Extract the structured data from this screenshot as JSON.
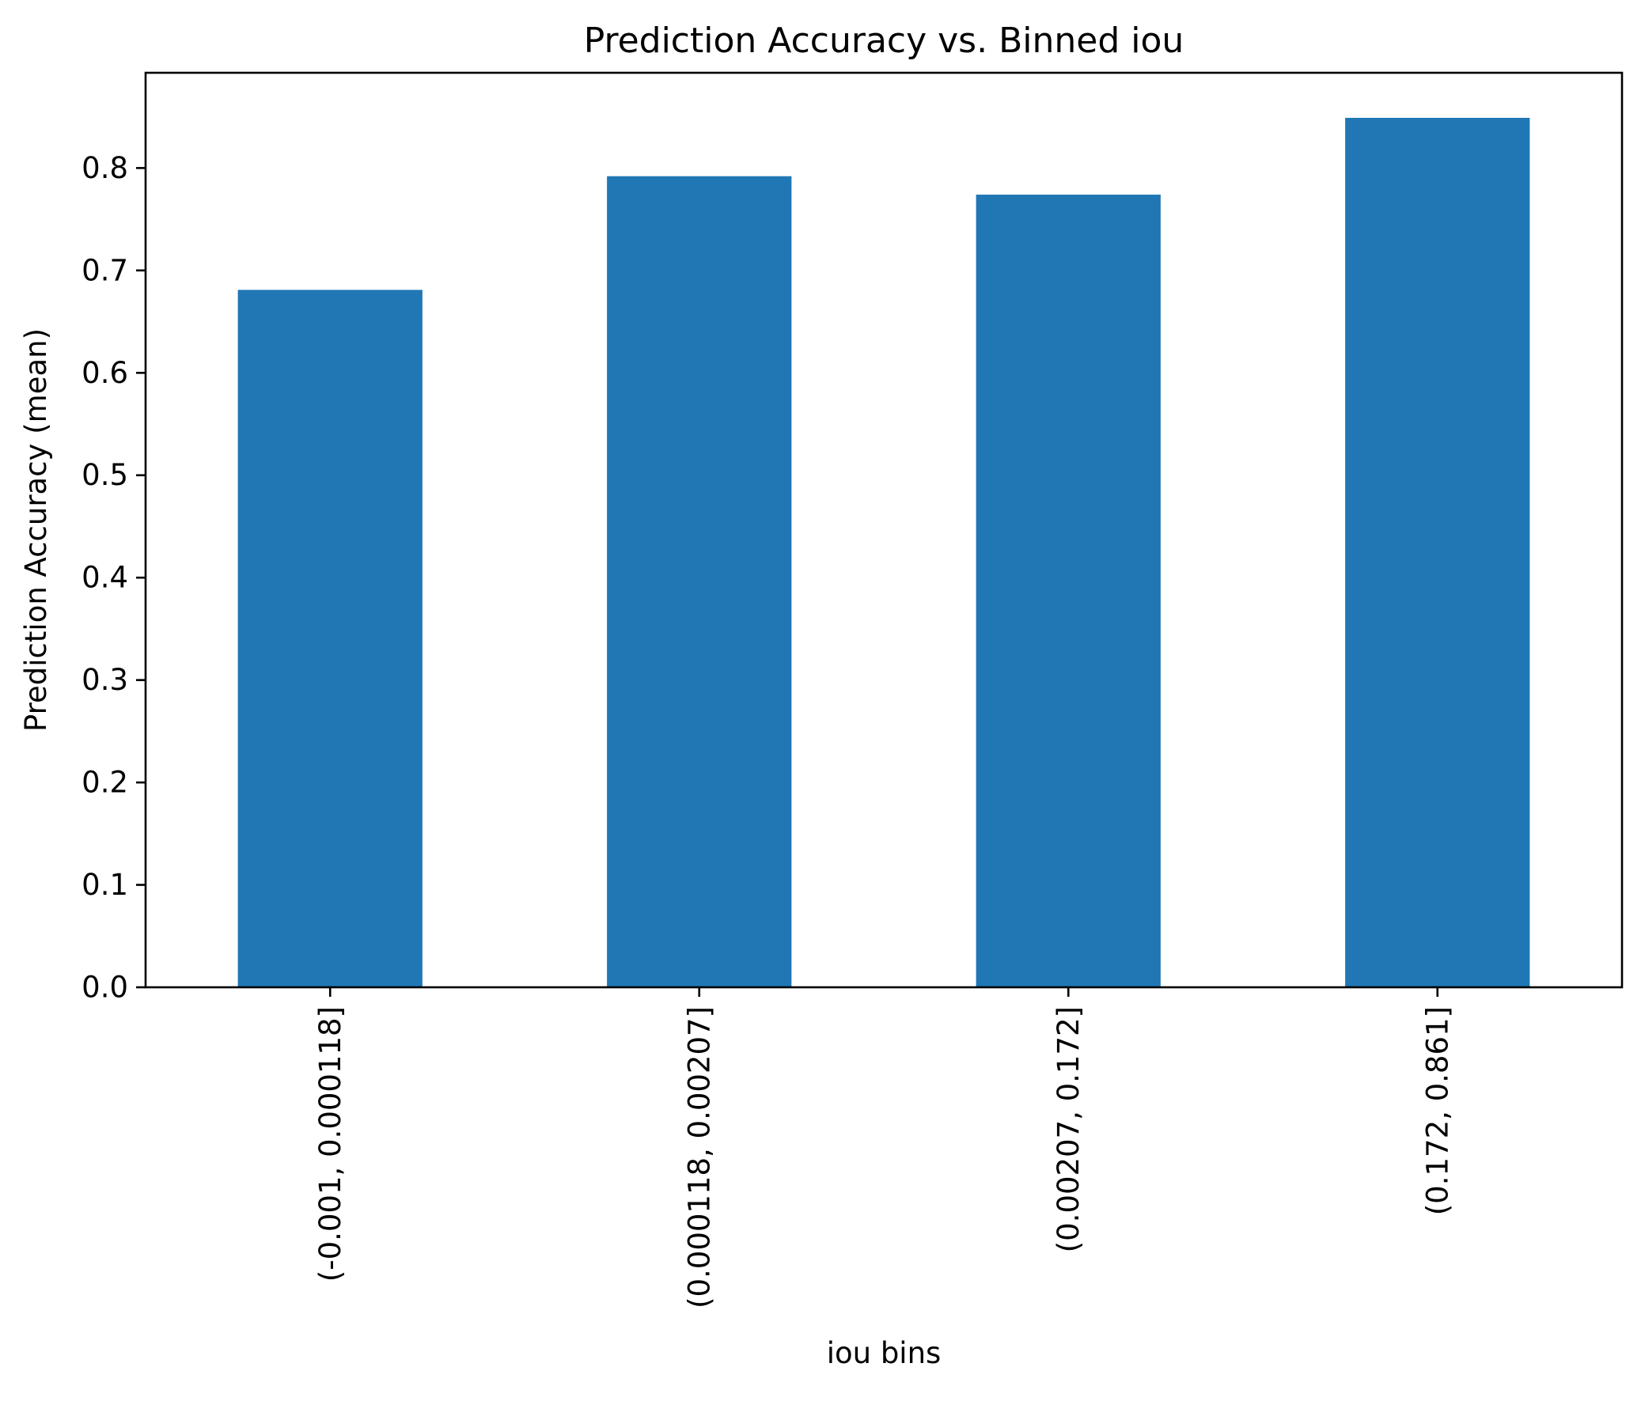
{
  "chart_data": {
    "type": "bar",
    "title": "Prediction Accuracy vs. Binned iou",
    "xlabel": "iou bins",
    "ylabel": "Prediction Accuracy (mean)",
    "categories": [
      "(-0.001, 0.000118]",
      "(0.000118, 0.00207]",
      "(0.00207, 0.172]",
      "(0.172, 0.861]"
    ],
    "values": [
      0.681,
      0.792,
      0.774,
      0.849
    ],
    "ylim": [
      0,
      0.893
    ],
    "yticks": [
      0.0,
      0.1,
      0.2,
      0.3,
      0.4,
      0.5,
      0.6,
      0.7,
      0.8
    ],
    "ytick_labels": [
      "0.0",
      "0.1",
      "0.2",
      "0.3",
      "0.4",
      "0.5",
      "0.6",
      "0.7",
      "0.8"
    ],
    "bar_color": "#2077b4",
    "grid": false,
    "legend": "none"
  }
}
